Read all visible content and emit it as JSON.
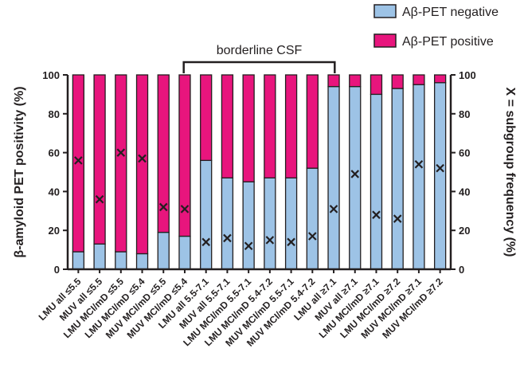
{
  "chart_data": {
    "type": "bar",
    "stacked": true,
    "ylabel": "β-amyloid PET positivity (%)",
    "y2label": "X = subgroup frequency (%)",
    "ylim": [
      0,
      100
    ],
    "y2lim": [
      0,
      100
    ],
    "yticks": [
      "0",
      "20",
      "40",
      "60",
      "80",
      "100"
    ],
    "y2ticks": [
      "0",
      "20",
      "40",
      "60",
      "80",
      "100"
    ],
    "grid": false,
    "legend_position": "top-right",
    "categories": [
      "LMU all ≤5.5",
      "MUV all ≤5.5",
      "LMU MCI/mD ≤5.5",
      "LMU MCI/mD ≤5.4",
      "MUV MCI/mD ≤5.5",
      "MUV MCI/mD ≤5.4",
      "LMU all 5.5-7.1",
      "MUV all 5.5-7.1",
      "LMU MCI/mD 5.5-7.1",
      "LMU MCI/mD 5.4-7.2",
      "MUV MCI/mD 5.5-7.1",
      "MUV MCI/mD 5.4-7.2",
      "LMU all ≥7.1",
      "MUV all ≥7.1",
      "LMU MCI/mD ≥7.1",
      "LMU MCI/mD ≥7.2",
      "MUV MCI/mD ≥7.1",
      "MUV MCI/mD ≥7.2"
    ],
    "series": [
      {
        "name": "Aβ-PET negative",
        "color": "#9dc3e6",
        "values": [
          9,
          13,
          9,
          8,
          19,
          17,
          56,
          47,
          45,
          47,
          47,
          52,
          94,
          94,
          90,
          93,
          95,
          96
        ]
      },
      {
        "name": "Aβ-PET positive",
        "color": "#e8157d",
        "values": [
          91,
          87,
          91,
          92,
          81,
          83,
          44,
          53,
          55,
          53,
          53,
          48,
          6,
          6,
          10,
          7,
          5,
          4
        ]
      },
      {
        "name": "X = subgroup frequency (%)",
        "marker": "x",
        "axis": "right",
        "values": [
          56,
          36,
          60,
          57,
          32,
          31,
          14,
          16,
          12,
          15,
          14,
          17,
          31,
          49,
          28,
          26,
          54,
          52
        ]
      }
    ],
    "annotation": {
      "text": "borderline CSF",
      "bracket_from_category": 6,
      "bracket_to_category": 11
    }
  }
}
